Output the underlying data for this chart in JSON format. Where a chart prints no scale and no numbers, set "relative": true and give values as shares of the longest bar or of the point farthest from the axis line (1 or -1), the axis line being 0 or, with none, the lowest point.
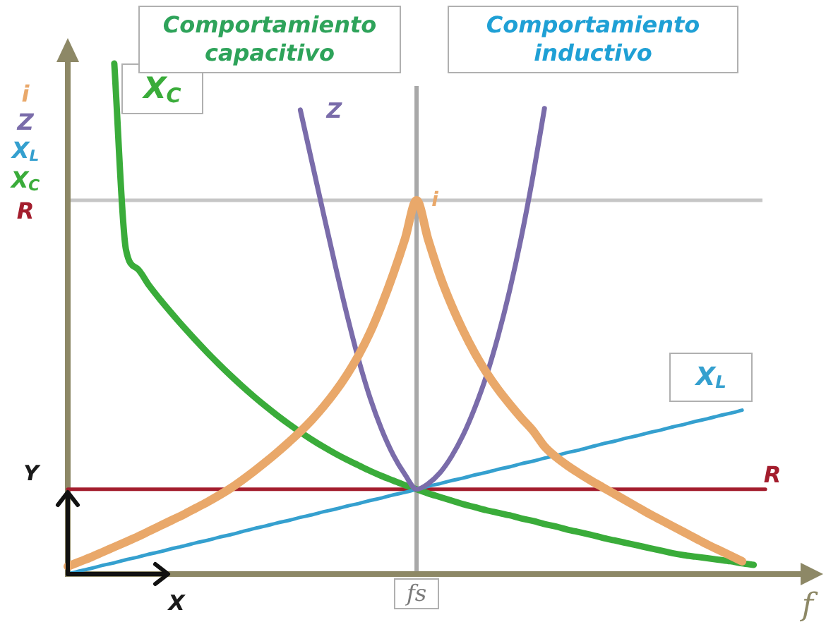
{
  "chart_data": {
    "type": "line",
    "relative": true,
    "marker": "none",
    "legend": "left",
    "xlabel": "f",
    "categories": [
      null,
      null,
      null,
      null,
      null,
      null,
      null,
      null,
      null,
      null,
      null,
      null,
      null,
      null,
      null,
      null,
      null,
      null,
      null,
      null,
      null,
      null,
      null,
      null,
      null,
      null,
      null,
      null,
      null,
      null,
      null,
      null,
      null,
      null,
      null,
      null,
      null,
      null,
      null,
      null,
      null,
      null,
      null,
      null,
      null,
      null,
      null,
      null,
      null,
      null,
      null,
      null,
      null,
      null,
      null,
      null,
      null,
      null,
      null,
      null,
      null,
      null,
      null,
      null,
      null
    ],
    "series": [
      {
        "name": "i",
        "color": "#e9a86a",
        "values": [
          0.015,
          0.024,
          0.033,
          0.043,
          0.053,
          0.063,
          0.073,
          0.084,
          0.095,
          0.106,
          0.117,
          0.129,
          0.141,
          0.154,
          0.168,
          0.184,
          0.201,
          0.219,
          0.238,
          0.258,
          0.279,
          0.302,
          0.328,
          0.357,
          0.39,
          0.428,
          0.473,
          0.527,
          0.588,
          0.656,
          0.732,
          0.655,
          0.585,
          0.527,
          0.477,
          0.433,
          0.395,
          0.362,
          0.333,
          0.306,
          0.281,
          0.25,
          0.229,
          0.212,
          0.197,
          0.183,
          0.17,
          0.157,
          0.144,
          0.131,
          0.118,
          0.106,
          0.094,
          0.082,
          0.07,
          0.058,
          0.047,
          0.036,
          0.025,
          null,
          null,
          null,
          null,
          null,
          null
        ]
      },
      {
        "name": "Z",
        "color": "#7a6caa",
        "values": [
          null,
          null,
          null,
          null,
          null,
          null,
          null,
          null,
          null,
          null,
          null,
          null,
          null,
          null,
          null,
          null,
          null,
          null,
          null,
          null,
          0.909,
          0.807,
          0.705,
          0.605,
          0.509,
          0.421,
          0.345,
          0.283,
          0.233,
          0.195,
          0.166,
          0.177,
          0.198,
          0.23,
          0.272,
          0.325,
          0.388,
          0.465,
          0.555,
          0.659,
          0.778,
          0.912,
          null,
          null,
          null,
          null,
          null,
          null,
          null,
          null,
          null,
          null,
          null,
          null,
          null,
          null,
          null,
          null,
          null,
          null,
          null,
          null,
          null,
          null,
          null
        ]
      },
      {
        "name": "X$_{L}$",
        "color": "#35a0cf",
        "values": [
          0,
          0.006,
          0.011,
          0.017,
          0.022,
          0.028,
          0.033,
          0.039,
          0.044,
          0.05,
          0.055,
          0.061,
          0.066,
          0.072,
          0.077,
          0.083,
          0.089,
          0.094,
          0.1,
          0.105,
          0.111,
          0.116,
          0.122,
          0.127,
          0.133,
          0.138,
          0.144,
          0.149,
          0.155,
          0.16,
          0.166,
          0.172,
          0.177,
          0.183,
          0.188,
          0.194,
          0.199,
          0.205,
          0.21,
          0.216,
          0.221,
          0.227,
          0.232,
          0.238,
          0.243,
          0.249,
          0.255,
          0.26,
          0.266,
          0.271,
          0.277,
          0.282,
          0.288,
          0.293,
          0.299,
          0.304,
          0.31,
          0.315,
          0.321,
          null,
          null,
          null,
          null,
          null,
          null
        ]
      },
      {
        "name": "X$_{C}$",
        "color": "#3aac3a",
        "values": [
          null,
          null,
          null,
          null,
          1.0,
          0.636,
          0.598,
          0.565,
          0.536,
          0.509,
          0.483,
          0.458,
          0.434,
          0.411,
          0.389,
          0.368,
          0.348,
          0.329,
          0.311,
          0.294,
          0.278,
          0.263,
          0.249,
          0.236,
          0.224,
          0.213,
          0.202,
          0.192,
          0.183,
          0.174,
          0.166,
          0.158,
          0.151,
          0.144,
          0.137,
          0.131,
          0.125,
          0.12,
          0.115,
          0.109,
          0.104,
          0.098,
          0.093,
          0.087,
          0.082,
          0.077,
          0.071,
          0.066,
          0.061,
          0.056,
          0.051,
          0.046,
          0.041,
          0.037,
          0.034,
          0.031,
          0.028,
          0.025,
          0.021,
          0.018,
          null,
          null,
          null,
          null,
          null
        ]
      },
      {
        "name": "R",
        "color": "#a31d2d",
        "values": [
          0.166,
          0.166,
          0.166,
          0.166,
          0.166,
          0.166,
          0.166,
          0.166,
          0.166,
          0.166,
          0.166,
          0.166,
          0.166,
          0.166,
          0.166,
          0.166,
          0.166,
          0.166,
          0.166,
          0.166,
          0.166,
          0.166,
          0.166,
          0.166,
          0.166,
          0.166,
          0.166,
          0.166,
          0.166,
          0.166,
          0.166,
          0.166,
          0.166,
          0.166,
          0.166,
          0.166,
          0.166,
          0.166,
          0.166,
          0.166,
          0.166,
          0.166,
          0.166,
          0.166,
          0.166,
          0.166,
          0.166,
          0.166,
          0.166,
          0.166,
          0.166,
          0.166,
          0.166,
          0.166,
          0.166,
          0.166,
          0.166,
          0.166,
          0.166,
          0.166,
          0.166,
          null,
          null,
          null,
          null
        ]
      }
    ],
    "ref_lines": [
      {
        "axis": "y",
        "value": 0.732,
        "color": "#c6c6c6"
      }
    ],
    "annotations": [
      "Comportamiento capacitivo",
      "Comportamiento inductivo",
      "Y",
      "X",
      "fs"
    ]
  }
}
